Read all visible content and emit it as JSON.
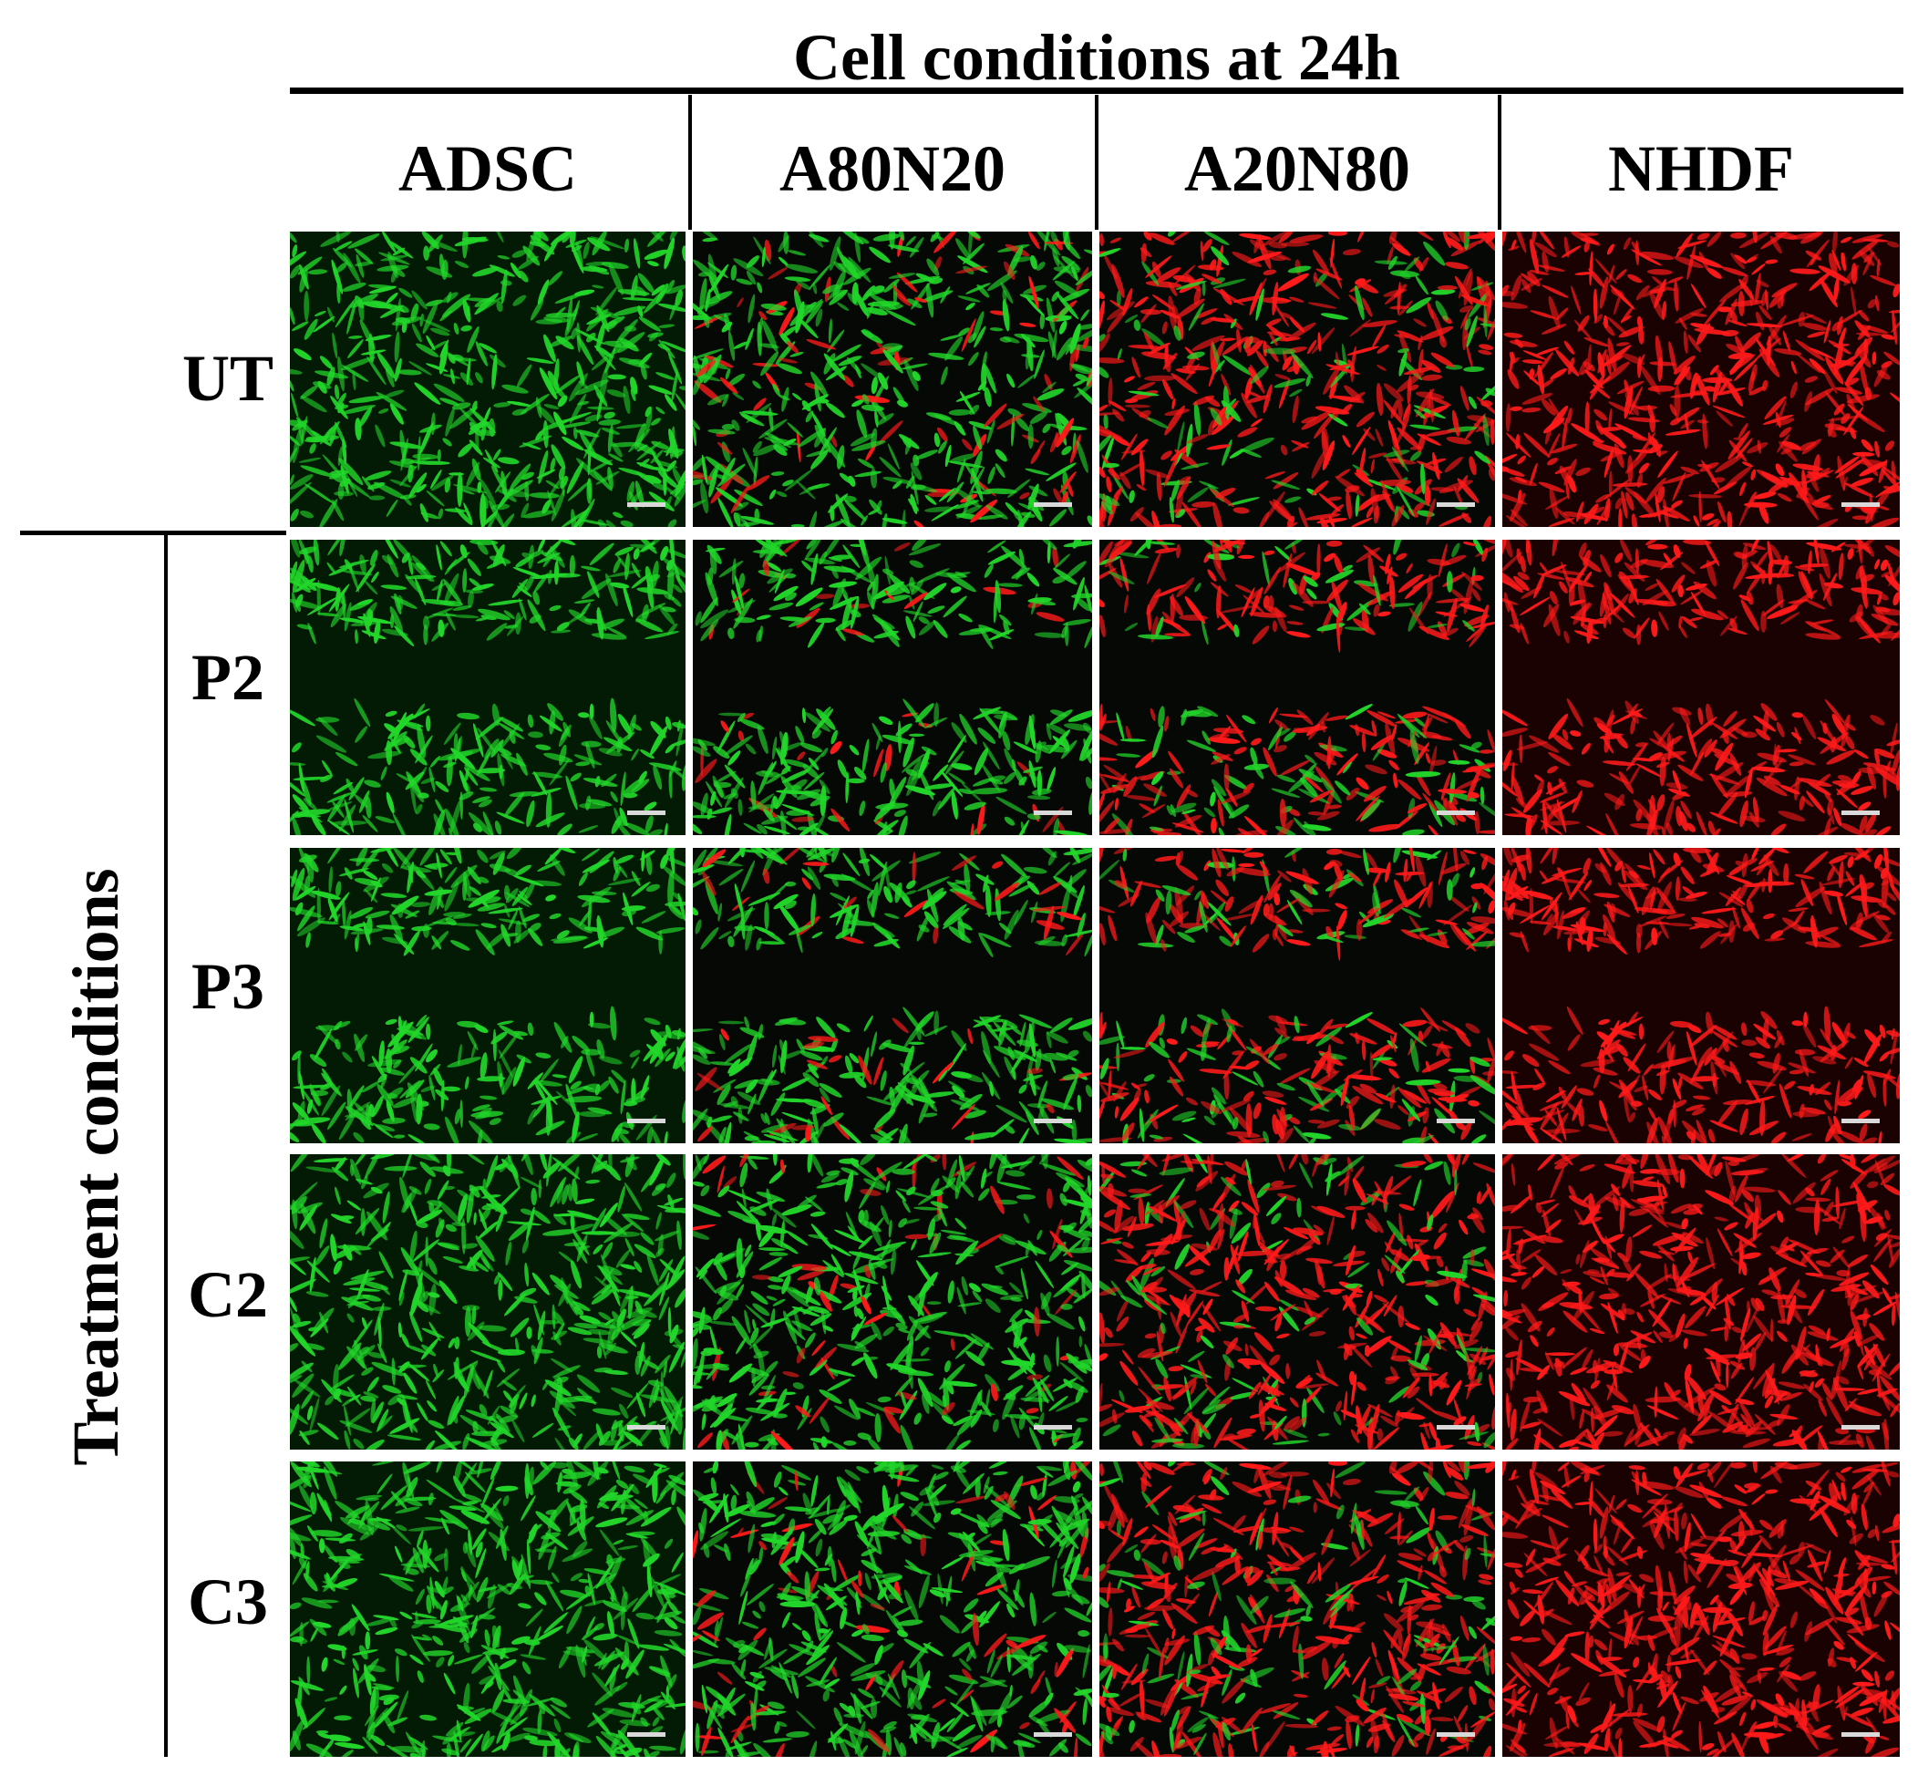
{
  "figure": {
    "title": "Cell conditions at 24h",
    "side_label": "Treatment conditions",
    "columns": [
      "ADSC",
      "A80N20",
      "A20N80",
      "NHDF"
    ],
    "rows": [
      "UT",
      "P2",
      "P3",
      "C2",
      "C3"
    ],
    "stain_colors": {
      "ADSC": "#22d62a",
      "NHDF": "#ff1a1a"
    },
    "panel_fractions": {
      "red_by_column": [
        0.0,
        0.12,
        0.72,
        1.0
      ]
    },
    "scratch_rows": [
      "P2",
      "P3"
    ]
  }
}
